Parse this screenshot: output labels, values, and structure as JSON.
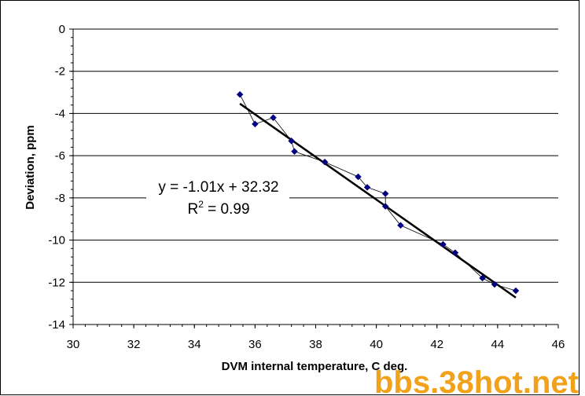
{
  "chart_data": {
    "type": "scatter",
    "title": "",
    "xlabel": "DVM internal temperature, C deg.",
    "ylabel": "Deviation, ppm",
    "xlim": [
      30,
      46
    ],
    "ylim": [
      -14,
      0
    ],
    "xticks": [
      30,
      32,
      34,
      36,
      38,
      40,
      42,
      44,
      46
    ],
    "yticks": [
      0,
      -2,
      -4,
      -6,
      -8,
      -10,
      -12,
      -14
    ],
    "xtick_labels": [
      "30",
      "32",
      "34",
      "36",
      "38",
      "40",
      "42",
      "44",
      "46"
    ],
    "ytick_labels": [
      "0",
      "-2",
      "-4",
      "-6",
      "-8",
      "-10",
      "-12",
      "-14"
    ],
    "grid": "horizontal",
    "series": [
      {
        "name": "Deviation",
        "color": "#000080",
        "x": [
          35.5,
          36.0,
          36.6,
          37.2,
          37.3,
          38.3,
          39.4,
          39.7,
          40.3,
          40.3,
          40.8,
          42.2,
          42.6,
          43.5,
          43.9,
          44.6
        ],
        "y": [
          -3.1,
          -4.5,
          -4.2,
          -5.3,
          -5.8,
          -6.3,
          -7.0,
          -7.5,
          -7.8,
          -8.4,
          -9.3,
          -10.2,
          -10.6,
          -11.8,
          -12.1,
          -12.4
        ]
      }
    ],
    "trendline": {
      "slope": -1.01,
      "intercept": 32.32,
      "x_range": [
        35.5,
        44.6
      ],
      "equation": "y = -1.01x + 32.32",
      "r2_prefix": "R",
      "r2_sup": "2",
      "r2_suffix": " = 0.99"
    }
  },
  "watermark": {
    "text": "bbs.38hot.net",
    "color": "#f2a21a"
  }
}
